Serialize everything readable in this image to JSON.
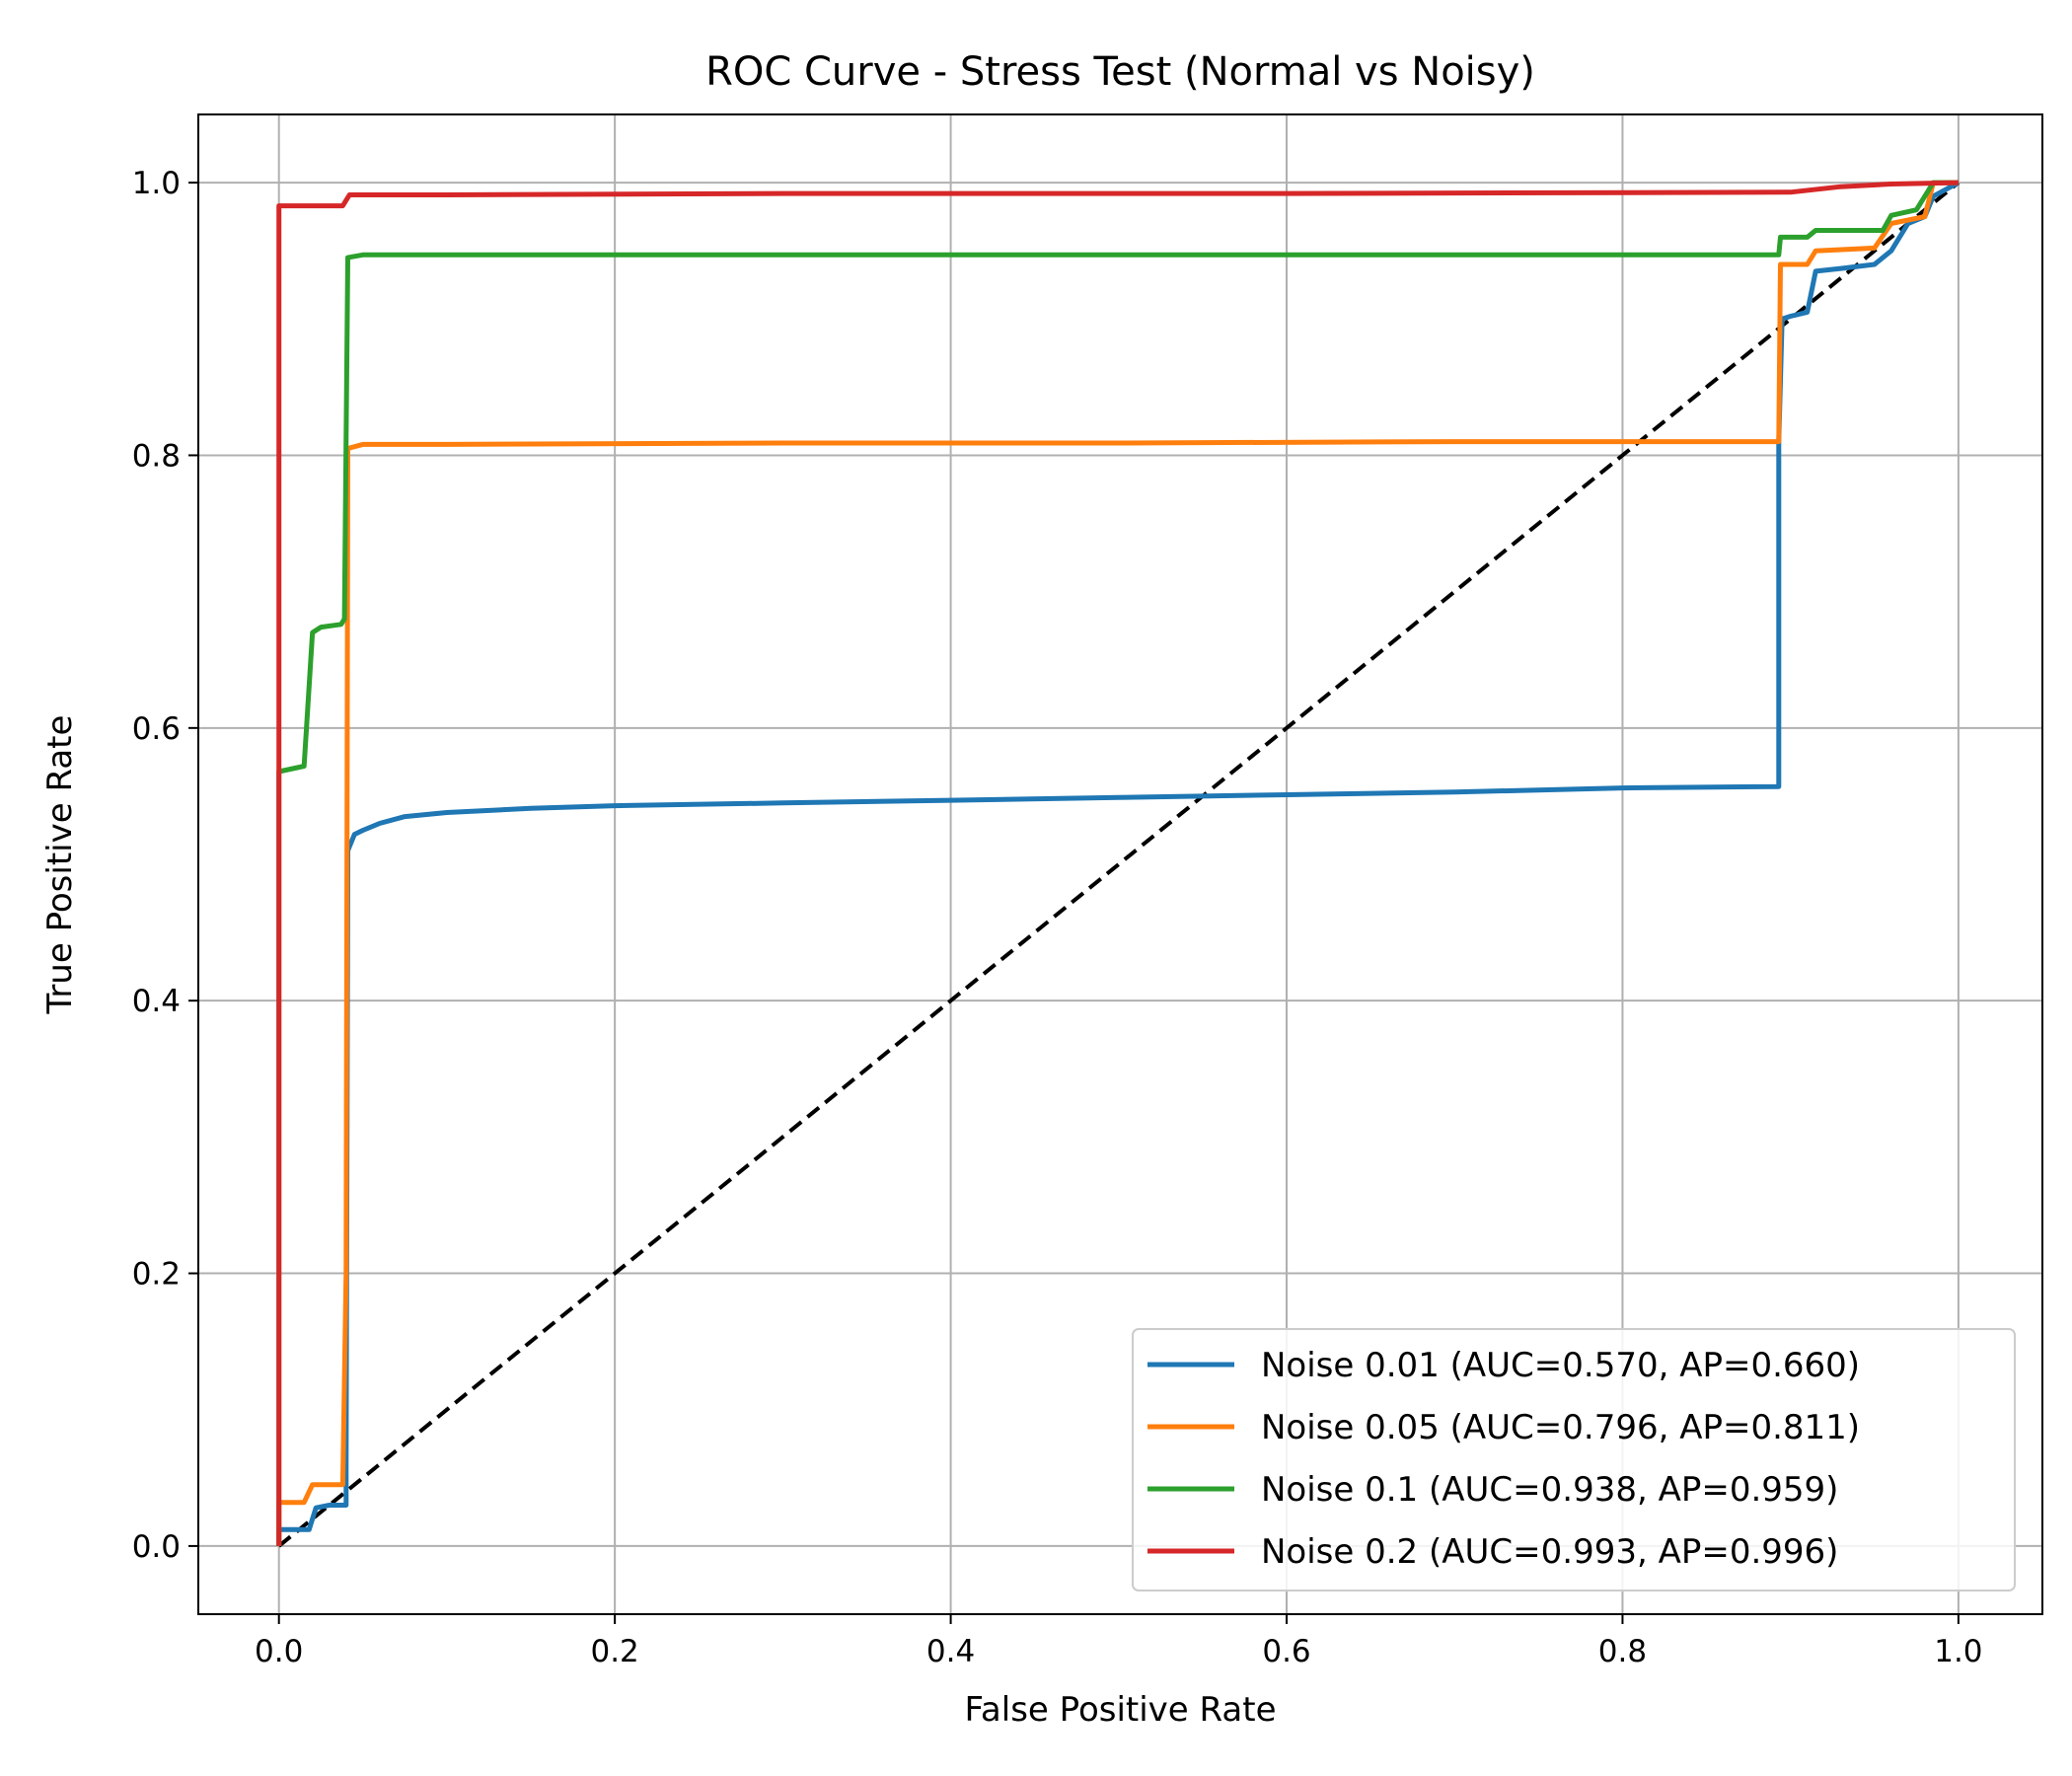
{
  "chart_data": {
    "type": "line",
    "title": "ROC Curve - Stress Test (Normal vs Noisy)",
    "xlabel": "False Positive Rate",
    "ylabel": "True Positive Rate",
    "xlim": [
      -0.048,
      1.05
    ],
    "ylim": [
      -0.05,
      1.05
    ],
    "x_ticks": [
      "0.0",
      "0.2",
      "0.4",
      "0.6",
      "0.8",
      "1.0"
    ],
    "y_ticks": [
      "0.0",
      "0.2",
      "0.4",
      "0.6",
      "0.8",
      "1.0"
    ],
    "grid": true,
    "legend_position": "lower-right",
    "series": [
      {
        "name": "Noise 0.01 (AUC=0.570, AP=0.660)",
        "color": "#1f77b4",
        "points": [
          [
            0,
            0
          ],
          [
            0,
            0.012
          ],
          [
            0.018,
            0.012
          ],
          [
            0.022,
            0.028
          ],
          [
            0.03,
            0.03
          ],
          [
            0.04,
            0.03
          ],
          [
            0.04,
            0.06
          ],
          [
            0.041,
            0.51
          ],
          [
            0.045,
            0.522
          ],
          [
            0.05,
            0.525
          ],
          [
            0.06,
            0.53
          ],
          [
            0.075,
            0.535
          ],
          [
            0.1,
            0.538
          ],
          [
            0.15,
            0.541
          ],
          [
            0.2,
            0.543
          ],
          [
            0.3,
            0.545
          ],
          [
            0.4,
            0.547
          ],
          [
            0.5,
            0.549
          ],
          [
            0.6,
            0.551
          ],
          [
            0.7,
            0.553
          ],
          [
            0.8,
            0.556
          ],
          [
            0.893,
            0.557
          ],
          [
            0.893,
            0.81
          ],
          [
            0.895,
            0.9
          ],
          [
            0.9,
            0.902
          ],
          [
            0.91,
            0.905
          ],
          [
            0.915,
            0.935
          ],
          [
            0.93,
            0.937
          ],
          [
            0.95,
            0.94
          ],
          [
            0.96,
            0.95
          ],
          [
            0.97,
            0.97
          ],
          [
            0.98,
            0.975
          ],
          [
            0.985,
            0.99
          ],
          [
            1,
            1
          ]
        ]
      },
      {
        "name": "Noise 0.05 (AUC=0.796, AP=0.811)",
        "color": "#ff7f0e",
        "points": [
          [
            0,
            0
          ],
          [
            0,
            0.032
          ],
          [
            0.015,
            0.032
          ],
          [
            0.02,
            0.045
          ],
          [
            0.038,
            0.045
          ],
          [
            0.04,
            0.2
          ],
          [
            0.041,
            0.805
          ],
          [
            0.05,
            0.808
          ],
          [
            0.1,
            0.808
          ],
          [
            0.3,
            0.809
          ],
          [
            0.5,
            0.809
          ],
          [
            0.7,
            0.81
          ],
          [
            0.893,
            0.81
          ],
          [
            0.894,
            0.94
          ],
          [
            0.91,
            0.94
          ],
          [
            0.915,
            0.95
          ],
          [
            0.95,
            0.952
          ],
          [
            0.96,
            0.97
          ],
          [
            0.98,
            0.975
          ],
          [
            0.985,
            1
          ],
          [
            1,
            1
          ]
        ]
      },
      {
        "name": "Noise 0.1 (AUC=0.938, AP=0.959)",
        "color": "#2ca02c",
        "points": [
          [
            0,
            0
          ],
          [
            0,
            0.568
          ],
          [
            0.015,
            0.572
          ],
          [
            0.02,
            0.67
          ],
          [
            0.025,
            0.674
          ],
          [
            0.037,
            0.676
          ],
          [
            0.039,
            0.68
          ],
          [
            0.041,
            0.945
          ],
          [
            0.05,
            0.947
          ],
          [
            0.3,
            0.947
          ],
          [
            0.6,
            0.947
          ],
          [
            0.893,
            0.947
          ],
          [
            0.894,
            0.96
          ],
          [
            0.91,
            0.96
          ],
          [
            0.915,
            0.965
          ],
          [
            0.955,
            0.965
          ],
          [
            0.96,
            0.976
          ],
          [
            0.975,
            0.98
          ],
          [
            0.985,
            1
          ],
          [
            1,
            1
          ]
        ]
      },
      {
        "name": "Noise 0.2 (AUC=0.993, AP=0.996)",
        "color": "#d62728",
        "points": [
          [
            0,
            0
          ],
          [
            0,
            0.983
          ],
          [
            0.038,
            0.983
          ],
          [
            0.042,
            0.991
          ],
          [
            0.1,
            0.991
          ],
          [
            0.3,
            0.992
          ],
          [
            0.6,
            0.992
          ],
          [
            0.9,
            0.993
          ],
          [
            0.93,
            0.997
          ],
          [
            0.96,
            0.999
          ],
          [
            1,
            1
          ]
        ]
      },
      {
        "name": "",
        "color": "#000000",
        "dashed": true,
        "points": [
          [
            0,
            0
          ],
          [
            1,
            1
          ]
        ]
      }
    ]
  }
}
